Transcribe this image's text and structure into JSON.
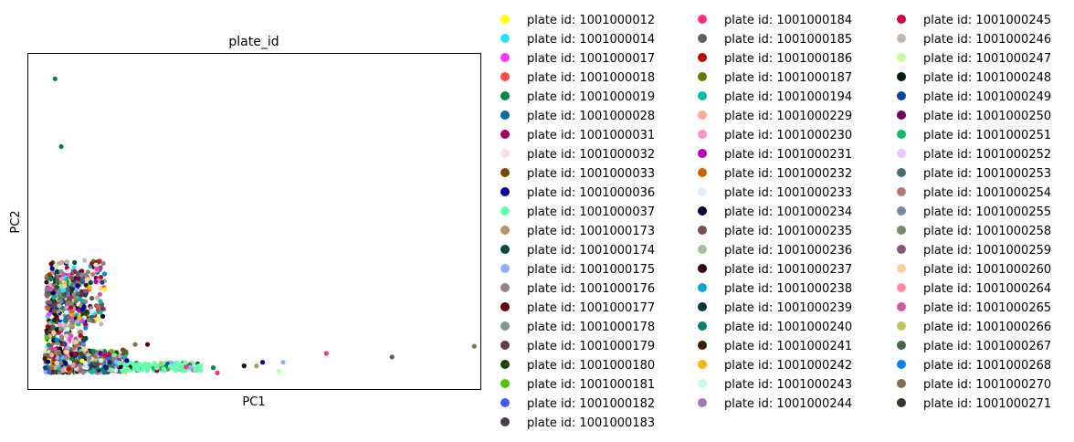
{
  "chart_data": {
    "type": "scatter",
    "title": "plate_id",
    "xlabel": "PC1",
    "ylabel": "PC2",
    "xlim": [
      -0.5,
      10.5
    ],
    "ylim": [
      -0.4,
      9.0
    ],
    "grid": false,
    "ticks_visible": false,
    "legend_placement": "right, outside plot, 3 columns",
    "series": [
      {
        "name": "plate id: 1001000012",
        "color": "#FFFF00"
      },
      {
        "name": "plate id: 1001000014",
        "color": "#1CE6FF"
      },
      {
        "name": "plate id: 1001000017",
        "color": "#FF34FF"
      },
      {
        "name": "plate id: 1001000018",
        "color": "#FF4A46"
      },
      {
        "name": "plate id: 1001000019",
        "color": "#008941"
      },
      {
        "name": "plate id: 1001000028",
        "color": "#006FA6"
      },
      {
        "name": "plate id: 1001000031",
        "color": "#A30059"
      },
      {
        "name": "plate id: 1001000032",
        "color": "#FFDBE5"
      },
      {
        "name": "plate id: 1001000033",
        "color": "#7A4900"
      },
      {
        "name": "plate id: 1001000036",
        "color": "#0000A6"
      },
      {
        "name": "plate id: 1001000037",
        "color": "#63FFAC"
      },
      {
        "name": "plate id: 1001000173",
        "color": "#B79762"
      },
      {
        "name": "plate id: 1001000174",
        "color": "#004D43"
      },
      {
        "name": "plate id: 1001000175",
        "color": "#8FB0FF"
      },
      {
        "name": "plate id: 1001000176",
        "color": "#997D87"
      },
      {
        "name": "plate id: 1001000177",
        "color": "#5A0007"
      },
      {
        "name": "plate id: 1001000178",
        "color": "#809693"
      },
      {
        "name": "plate id: 1001000179",
        "color": "#6A3A4C"
      },
      {
        "name": "plate id: 1001000180",
        "color": "#1B4400"
      },
      {
        "name": "plate id: 1001000181",
        "color": "#4FC601"
      },
      {
        "name": "plate id: 1001000182",
        "color": "#3B5DFF"
      },
      {
        "name": "plate id: 1001000183",
        "color": "#4A3B53"
      },
      {
        "name": "plate id: 1001000184",
        "color": "#FF2F80"
      },
      {
        "name": "plate id: 1001000185",
        "color": "#61615A"
      },
      {
        "name": "plate id: 1001000186",
        "color": "#BA0900"
      },
      {
        "name": "plate id: 1001000187",
        "color": "#6B7900"
      },
      {
        "name": "plate id: 1001000194",
        "color": "#00C2A0"
      },
      {
        "name": "plate id: 1001000229",
        "color": "#FFAA92"
      },
      {
        "name": "plate id: 1001000230",
        "color": "#FF90C9"
      },
      {
        "name": "plate id: 1001000231",
        "color": "#B903AA"
      },
      {
        "name": "plate id: 1001000232",
        "color": "#D16100"
      },
      {
        "name": "plate id: 1001000233",
        "color": "#DDEFFF"
      },
      {
        "name": "plate id: 1001000234",
        "color": "#000035"
      },
      {
        "name": "plate id: 1001000235",
        "color": "#7B4F4B"
      },
      {
        "name": "plate id: 1001000236",
        "color": "#A1C299"
      },
      {
        "name": "plate id: 1001000237",
        "color": "#300018"
      },
      {
        "name": "plate id: 1001000238",
        "color": "#0AA6D8"
      },
      {
        "name": "plate id: 1001000239",
        "color": "#013349"
      },
      {
        "name": "plate id: 1001000240",
        "color": "#00846F"
      },
      {
        "name": "plate id: 1001000241",
        "color": "#372101"
      },
      {
        "name": "plate id: 1001000242",
        "color": "#FFB500"
      },
      {
        "name": "plate id: 1001000243",
        "color": "#C2FFED"
      },
      {
        "name": "plate id: 1001000244",
        "color": "#A079BF"
      },
      {
        "name": "plate id: 1001000245",
        "color": "#CC0744"
      },
      {
        "name": "plate id: 1001000246",
        "color": "#C0B9B2"
      },
      {
        "name": "plate id: 1001000247",
        "color": "#C2FF99"
      },
      {
        "name": "plate id: 1001000248",
        "color": "#001E09"
      },
      {
        "name": "plate id: 1001000249",
        "color": "#00489C"
      },
      {
        "name": "plate id: 1001000250",
        "color": "#6F0062"
      },
      {
        "name": "plate id: 1001000251",
        "color": "#0CBD66"
      },
      {
        "name": "plate id: 1001000252",
        "color": "#EEC3FF"
      },
      {
        "name": "plate id: 1001000253",
        "color": "#456D75"
      },
      {
        "name": "plate id: 1001000254",
        "color": "#B77B68"
      },
      {
        "name": "plate id: 1001000255",
        "color": "#7A87A1"
      },
      {
        "name": "plate id: 1001000258",
        "color": "#788D66"
      },
      {
        "name": "plate id: 1001000259",
        "color": "#885578"
      },
      {
        "name": "plate id: 1001000260",
        "color": "#FAD09F"
      },
      {
        "name": "plate id: 1001000264",
        "color": "#FF8A9A"
      },
      {
        "name": "plate id: 1001000265",
        "color": "#D157A0"
      },
      {
        "name": "plate id: 1001000266",
        "color": "#BEC459"
      },
      {
        "name": "plate id: 1001000267",
        "color": "#456648"
      },
      {
        "name": "plate id: 1001000268",
        "color": "#0086ED"
      },
      {
        "name": "plate id: 1001000270",
        "color": "#886F4C"
      },
      {
        "name": "plate id: 1001000271",
        "color": "#34362D"
      }
    ],
    "outlier_points": [
      {
        "series": 4,
        "x": 0.15,
        "y": 8.3
      },
      {
        "series": 4,
        "x": 0.3,
        "y": 6.4
      },
      {
        "series": 16,
        "x": 0.3,
        "y": 2.9
      },
      {
        "series": 14,
        "x": 0.8,
        "y": 2.8
      },
      {
        "series": 9,
        "x": 0.7,
        "y": 2.5
      },
      {
        "series": 2,
        "x": 0.05,
        "y": 2.4
      },
      {
        "series": 62,
        "x": 2.1,
        "y": 0.85
      },
      {
        "series": 15,
        "x": 2.4,
        "y": 0.85
      },
      {
        "series": 8,
        "x": 1.8,
        "y": 0.7
      },
      {
        "series": 9,
        "x": 1.9,
        "y": 0.4
      },
      {
        "series": 13,
        "x": 5.7,
        "y": 0.35
      },
      {
        "series": 9,
        "x": 5.2,
        "y": 0.35
      },
      {
        "series": 46,
        "x": 4.75,
        "y": 0.25
      },
      {
        "series": 22,
        "x": 6.75,
        "y": 0.6
      },
      {
        "series": 23,
        "x": 8.35,
        "y": 0.5
      },
      {
        "series": 62,
        "x": 10.35,
        "y": 0.8
      },
      {
        "series": 22,
        "x": 4.1,
        "y": 0.05
      },
      {
        "series": 11,
        "x": 5.05,
        "y": 0.25
      },
      {
        "series": 4,
        "x": 4.0,
        "y": 0.2
      },
      {
        "series": 45,
        "x": 5.6,
        "y": 0.1
      }
    ]
  }
}
